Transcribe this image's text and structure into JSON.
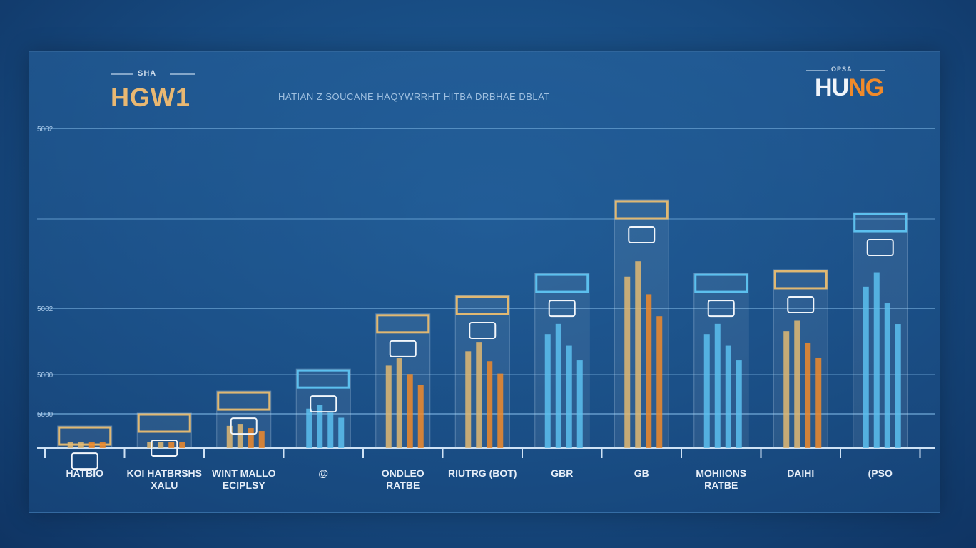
{
  "header": {
    "brand_left_small": "SHA",
    "title_left": "HGW1",
    "subtitle": "HATIAN Z SOUCANE HAQYWRRHT HITBA DRBHAE DBLAT",
    "brand_right_small": "OPSA",
    "title_right_part1": "HU",
    "title_right_part2": "NG"
  },
  "colors": {
    "background": "#174a80",
    "gold": "#e0b872",
    "orange": "#f08a2a",
    "blue": "#5cc0ee",
    "grid": "#7fb8e6"
  },
  "chart_data": {
    "type": "bar",
    "title": "HGW1",
    "subtitle": "HATIAN Z SOUCANE HAQYWRRHT HITBA DRBHAE DBLAT",
    "y_tick_labels": [
      "5002",
      "5002",
      "5000",
      "5000"
    ],
    "grid": true,
    "categories": [
      "HATBIO",
      "KOI HATBRSHS XALU",
      "WINT MALLO ECIPLSY",
      "@",
      "ONDLEO RATBE",
      "RIUTRG (BOT)",
      "GBR",
      "GB",
      "MOHIIONS RATBE",
      "DAIHI",
      "(PSO"
    ],
    "values": [
      1.2,
      1.9,
      3.1,
      4.3,
      7.3,
      8.3,
      9.5,
      13.5,
      9.5,
      9.7,
      12.8
    ],
    "series_color": [
      "gold",
      "gold",
      "gold",
      "blue",
      "gold",
      "gold",
      "blue",
      "gold",
      "blue",
      "gold",
      "blue"
    ]
  }
}
